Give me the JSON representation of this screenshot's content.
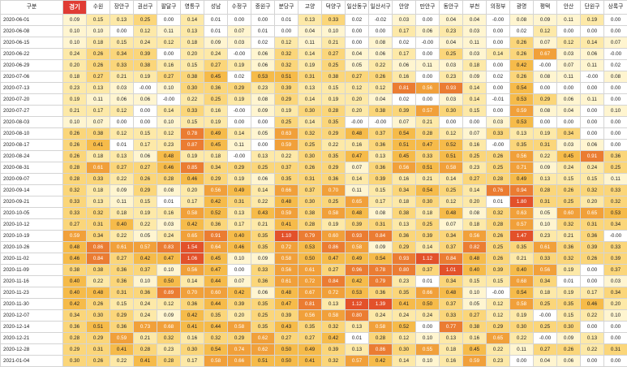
{
  "table": {
    "headers": [
      "구분",
      "경기",
      "수원",
      "장안구",
      "권선구",
      "팔달구",
      "영통구",
      "성남",
      "수정구",
      "중원구",
      "분당구",
      "고양",
      "덕양구",
      "일산동구",
      "일산서구",
      "안양",
      "만안구",
      "동안구",
      "부천",
      "의정부",
      "광명",
      "평택",
      "안산",
      "단원구",
      "상록구"
    ],
    "highlight_header": "경기",
    "rows": [
      {
        "date": "2020-06-01",
        "values": [
          "0.09",
          "0.15",
          "0.13",
          "0.25",
          "0.00",
          "0.14",
          "0.01",
          "0.00",
          "0.00",
          "0.01",
          "0.13",
          "0.33",
          "0.02",
          "-0.02",
          "0.03",
          "0.00",
          "0.04",
          "0.04",
          "-0.00",
          "0.08",
          "0.09",
          "0.11",
          "0.19",
          "0.00"
        ]
      },
      {
        "date": "2020-06-08",
        "values": [
          "0.10",
          "0.10",
          "0.00",
          "0.12",
          "0.11",
          "0.13",
          "0.01",
          "0.07",
          "0.01",
          "0.00",
          "0.04",
          "0.10",
          "0.00",
          "0.00",
          "0.17",
          "0.06",
          "0.23",
          "0.03",
          "0.00",
          "0.02",
          "0.12",
          "0.00",
          "0.00",
          "0.00"
        ]
      },
      {
        "date": "2020-06-15",
        "values": [
          "0.10",
          "0.18",
          "0.15",
          "0.24",
          "0.12",
          "0.18",
          "0.09",
          "0.03",
          "0.02",
          "0.12",
          "0.11",
          "0.21",
          "0.00",
          "0.08",
          "0.02",
          "-0.00",
          "0.04",
          "0.11",
          "0.00",
          "0.26",
          "0.07",
          "0.12",
          "0.14",
          "0.07"
        ]
      },
      {
        "date": "2020-06-22",
        "values": [
          "0.24",
          "0.26",
          "0.34",
          "0.39",
          "0.00",
          "0.20",
          "0.24",
          "-0.00",
          "0.06",
          "0.32",
          "0.14",
          "0.27",
          "0.04",
          "0.06",
          "0.17",
          "0.00",
          "0.25",
          "0.03",
          "0.14",
          "0.26",
          "0.67",
          "0.03",
          "0.06",
          "-0.00"
        ]
      },
      {
        "date": "2020-06-29",
        "values": [
          "0.20",
          "0.26",
          "0.33",
          "0.38",
          "0.16",
          "0.15",
          "0.27",
          "0.19",
          "0.06",
          "0.32",
          "0.19",
          "0.25",
          "0.05",
          "0.22",
          "0.06",
          "0.11",
          "0.03",
          "0.18",
          "0.00",
          "0.42",
          "-0.00",
          "0.07",
          "0.11",
          "0.02"
        ]
      },
      {
        "date": "2020-07-06",
        "values": [
          "0.18",
          "0.27",
          "0.21",
          "0.19",
          "0.27",
          "0.38",
          "0.45",
          "0.02",
          "0.53",
          "0.51",
          "0.31",
          "0.38",
          "0.27",
          "0.26",
          "0.16",
          "0.00",
          "0.23",
          "0.09",
          "0.02",
          "0.26",
          "0.08",
          "0.11",
          "-0.00",
          "0.08"
        ]
      },
      {
        "date": "2020-07-13",
        "values": [
          "0.23",
          "0.13",
          "0.03",
          "-0.00",
          "0.10",
          "0.30",
          "0.36",
          "0.29",
          "0.23",
          "0.39",
          "0.13",
          "0.15",
          "0.12",
          "0.12",
          "0.81",
          "0.56",
          "0.93",
          "0.14",
          "0.00",
          "0.54",
          "0.00",
          "0.00",
          "0.00",
          "0.00"
        ]
      },
      {
        "date": "2020-07-20",
        "values": [
          "0.19",
          "0.11",
          "0.06",
          "0.06",
          "-0.00",
          "0.22",
          "0.25",
          "0.19",
          "0.08",
          "0.29",
          "0.14",
          "0.19",
          "0.20",
          "0.04",
          "0.02",
          "0.00",
          "0.03",
          "0.14",
          "-0.01",
          "0.53",
          "0.29",
          "0.06",
          "0.11",
          "0.00"
        ]
      },
      {
        "date": "2020-07-27",
        "values": [
          "0.21",
          "0.17",
          "0.12",
          "0.00",
          "0.14",
          "0.33",
          "0.16",
          "-0.00",
          "0.09",
          "0.19",
          "0.30",
          "0.28",
          "0.20",
          "0.38",
          "0.39",
          "0.57",
          "0.30",
          "0.15",
          "0.00",
          "0.59",
          "0.08",
          "0.04",
          "0.00",
          "0.10"
        ]
      },
      {
        "date": "2020-08-03",
        "values": [
          "0.10",
          "0.07",
          "0.00",
          "0.00",
          "0.10",
          "0.15",
          "0.19",
          "0.00",
          "0.00",
          "0.25",
          "0.14",
          "0.35",
          "-0.00",
          "-0.00",
          "0.07",
          "0.21",
          "0.00",
          "0.00",
          "0.03",
          "0.53",
          "0.00",
          "0.00",
          "0.00",
          "0.00"
        ]
      },
      {
        "date": "2020-08-10",
        "values": [
          "0.26",
          "0.38",
          "0.12",
          "0.15",
          "0.12",
          "0.78",
          "0.49",
          "0.14",
          "0.05",
          "0.63",
          "0.32",
          "0.29",
          "0.48",
          "0.37",
          "0.54",
          "0.28",
          "0.12",
          "0.07",
          "0.33",
          "0.13",
          "0.19",
          "0.34",
          "0.00",
          "0.00"
        ]
      },
      {
        "date": "2020-08-17",
        "values": [
          "0.26",
          "0.41",
          "0.01",
          "0.17",
          "0.23",
          "0.87",
          "0.45",
          "0.11",
          "0.00",
          "0.59",
          "0.25",
          "0.22",
          "0.16",
          "0.36",
          "0.51",
          "0.47",
          "0.52",
          "0.16",
          "-0.00",
          "0.35",
          "0.31",
          "0.03",
          "0.06",
          "0.00"
        ]
      },
      {
        "date": "2020-08-24",
        "values": [
          "0.26",
          "0.18",
          "0.13",
          "0.06",
          "0.48",
          "0.19",
          "0.18",
          "-0.00",
          "0.13",
          "0.22",
          "0.30",
          "0.35",
          "0.47",
          "0.13",
          "0.45",
          "0.33",
          "0.51",
          "0.25",
          "0.26",
          "0.56",
          "0.22",
          "0.45",
          "0.91",
          "0.36"
        ]
      },
      {
        "date": "2020-08-31",
        "values": [
          "0.28",
          "0.61",
          "0.27",
          "0.27",
          "0.46",
          "0.85",
          "0.34",
          "0.29",
          "0.25",
          "0.37",
          "0.26",
          "0.29",
          "0.07",
          "0.36",
          "0.56",
          "0.51",
          "0.58",
          "0.23",
          "0.25",
          "0.71",
          "0.09",
          "0.24",
          "0.24",
          "0.25"
        ]
      },
      {
        "date": "2020-09-07",
        "values": [
          "0.28",
          "0.33",
          "0.22",
          "0.26",
          "0.28",
          "0.46",
          "0.29",
          "0.19",
          "0.06",
          "0.35",
          "0.31",
          "0.36",
          "0.14",
          "0.39",
          "0.16",
          "0.21",
          "0.14",
          "0.27",
          "0.28",
          "0.49",
          "0.13",
          "0.15",
          "0.15",
          "0.11"
        ]
      },
      {
        "date": "2020-09-14",
        "values": [
          "0.32",
          "0.18",
          "0.09",
          "0.29",
          "0.08",
          "0.20",
          "0.56",
          "0.49",
          "0.14",
          "0.66",
          "0.37",
          "0.70",
          "0.11",
          "0.15",
          "0.34",
          "0.54",
          "0.25",
          "0.14",
          "0.76",
          "0.94",
          "0.28",
          "0.26",
          "0.32",
          "0.33"
        ]
      },
      {
        "date": "2020-09-21",
        "values": [
          "0.33",
          "0.13",
          "0.11",
          "0.15",
          "0.01",
          "0.17",
          "0.42",
          "0.31",
          "0.22",
          "0.48",
          "0.30",
          "0.25",
          "0.65",
          "0.17",
          "0.18",
          "0.30",
          "0.12",
          "0.20",
          "0.01",
          "1.80",
          "0.31",
          "0.25",
          "0.20",
          "0.32"
        ]
      },
      {
        "date": "2020-10-05",
        "values": [
          "0.33",
          "0.32",
          "0.18",
          "0.19",
          "0.16",
          "0.58",
          "0.52",
          "0.13",
          "0.43",
          "0.59",
          "0.38",
          "0.58",
          "0.48",
          "0.08",
          "0.38",
          "0.18",
          "0.48",
          "0.08",
          "0.32",
          "0.63",
          "0.05",
          "0.60",
          "0.65",
          "0.53"
        ]
      },
      {
        "date": "2020-10-12",
        "values": [
          "0.27",
          "0.31",
          "0.40",
          "0.22",
          "0.03",
          "0.42",
          "0.36",
          "0.17",
          "0.21",
          "0.41",
          "0.28",
          "0.19",
          "0.39",
          "0.31",
          "0.13",
          "0.25",
          "0.07",
          "0.18",
          "0.28",
          "0.57",
          "0.10",
          "0.32",
          "0.31",
          "0.34"
        ]
      },
      {
        "date": "2020-10-19",
        "values": [
          "0.59",
          "0.34",
          "0.22",
          "0.05",
          "0.24",
          "0.65",
          "0.91",
          "0.40",
          "0.35",
          "1.10",
          "0.79",
          "0.60",
          "0.93",
          "0.84",
          "0.36",
          "0.39",
          "0.34",
          "0.56",
          "0.26",
          "1.47",
          "0.23",
          "0.21",
          "0.36",
          "-0.00"
        ]
      },
      {
        "date": "2020-10-26",
        "values": [
          "0.48",
          "0.86",
          "0.61",
          "0.57",
          "0.83",
          "1.54",
          "0.64",
          "0.46",
          "0.35",
          "0.72",
          "0.53",
          "0.86",
          "0.58",
          "0.09",
          "0.29",
          "0.14",
          "0.37",
          "0.82",
          "0.25",
          "0.35",
          "0.61",
          "0.36",
          "0.39",
          "0.33"
        ]
      },
      {
        "date": "2020-11-02",
        "values": [
          "0.46",
          "0.84",
          "0.27",
          "0.42",
          "0.47",
          "1.06",
          "0.45",
          "0.10",
          "0.09",
          "0.58",
          "0.50",
          "0.47",
          "0.49",
          "0.54",
          "0.93",
          "1.12",
          "0.84",
          "0.48",
          "0.26",
          "0.21",
          "0.33",
          "0.32",
          "0.26",
          "0.39"
        ]
      },
      {
        "date": "2020-11-09",
        "values": [
          "0.38",
          "0.38",
          "0.36",
          "0.37",
          "0.10",
          "0.56",
          "0.47",
          "0.00",
          "0.33",
          "0.56",
          "0.61",
          "0.27",
          "0.96",
          "0.78",
          "0.80",
          "0.37",
          "1.01",
          "0.40",
          "0.39",
          "0.40",
          "0.56",
          "0.19",
          "0.00",
          "0.37"
        ]
      },
      {
        "date": "2020-11-16",
        "values": [
          "0.40",
          "0.22",
          "0.36",
          "0.10",
          "0.50",
          "0.14",
          "0.44",
          "0.07",
          "0.36",
          "0.61",
          "0.72",
          "0.84",
          "0.42",
          "0.79",
          "0.23",
          "0.01",
          "0.34",
          "0.15",
          "0.15",
          "0.68",
          "0.34",
          "0.01",
          "0.00",
          "0.03"
        ]
      },
      {
        "date": "2020-11-23",
        "values": [
          "0.40",
          "0.48",
          "0.31",
          "0.36",
          "0.89",
          "0.70",
          "0.60",
          "0.42",
          "0.06",
          "0.48",
          "0.67",
          "0.72",
          "0.53",
          "0.36",
          "0.35",
          "0.66",
          "0.48",
          "0.10",
          "-0.00",
          "0.54",
          "0.18",
          "0.19",
          "0.17",
          "0.34"
        ]
      },
      {
        "date": "2020-11-30",
        "values": [
          "0.42",
          "0.26",
          "0.15",
          "0.24",
          "0.12",
          "0.36",
          "0.44",
          "0.39",
          "0.35",
          "0.47",
          "0.81",
          "0.13",
          "1.12",
          "1.39",
          "0.41",
          "0.50",
          "0.37",
          "0.05",
          "0.12",
          "0.58",
          "0.25",
          "0.35",
          "0.46",
          "0.20"
        ]
      },
      {
        "date": "2020-12-07",
        "values": [
          "0.34",
          "0.30",
          "0.29",
          "0.24",
          "0.09",
          "0.42",
          "0.35",
          "0.20",
          "0.25",
          "0.39",
          "0.56",
          "0.58",
          "0.80",
          "0.24",
          "0.24",
          "0.24",
          "0.33",
          "0.27",
          "0.12",
          "0.19",
          "-0.00",
          "0.15",
          "0.22",
          "0.10"
        ]
      },
      {
        "date": "2020-12-14",
        "values": [
          "0.36",
          "0.51",
          "0.36",
          "0.73",
          "0.68",
          "0.41",
          "0.44",
          "0.58",
          "0.35",
          "0.43",
          "0.35",
          "0.32",
          "0.13",
          "0.58",
          "0.52",
          "0.00",
          "0.77",
          "0.38",
          "0.29",
          "0.30",
          "0.25",
          "0.30",
          "0.00",
          "0.00"
        ]
      },
      {
        "date": "2020-12-21",
        "values": [
          "0.28",
          "0.29",
          "0.59",
          "0.21",
          "0.32",
          "0.16",
          "0.32",
          "0.29",
          "0.62",
          "0.27",
          "0.27",
          "0.42",
          "0.01",
          "0.28",
          "0.12",
          "0.10",
          "0.13",
          "0.16",
          "0.65",
          "0.22",
          "-0.00",
          "0.09",
          "0.13",
          "0.00"
        ]
      },
      {
        "date": "2020-12-28",
        "values": [
          "0.29",
          "0.31",
          "0.41",
          "0.28",
          "0.23",
          "0.30",
          "0.54",
          "0.74",
          "0.62",
          "0.50",
          "0.49",
          "0.39",
          "0.13",
          "0.86",
          "0.30",
          "0.55",
          "0.18",
          "0.45",
          "0.22",
          "0.11",
          "0.27",
          "0.26",
          "0.22",
          "0.31"
        ]
      },
      {
        "date": "2021-01-04",
        "values": [
          "0.30",
          "0.26",
          "0.22",
          "0.41",
          "0.28",
          "0.17",
          "0.58",
          "0.66",
          "0.51",
          "0.50",
          "0.41",
          "0.32",
          "0.57",
          "0.42",
          "0.14",
          "0.10",
          "0.16",
          "0.59",
          "0.23",
          "0.00",
          "0.04",
          "0.06",
          "0.00",
          "0.00"
        ]
      }
    ],
    "colors": {
      "highlight_header_bg": "#e03c34",
      "scale": [
        "#ffffff",
        "#fff5d0",
        "#fde9a8",
        "#fbd67a",
        "#f6bb4a",
        "#f1a03a",
        "#eb7c32",
        "#e3512a"
      ]
    }
  }
}
